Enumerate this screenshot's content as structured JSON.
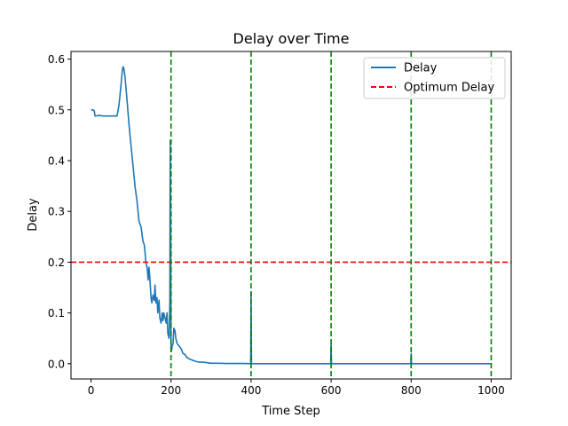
{
  "chart_data": {
    "type": "line",
    "title": "Delay over Time",
    "xlabel": "Time Step",
    "ylabel": "Delay",
    "xlim": [
      -50,
      1050
    ],
    "ylim": [
      -0.03,
      0.615
    ],
    "xticks": [
      0,
      200,
      400,
      600,
      800,
      1000
    ],
    "xtick_labels": [
      "0",
      "200",
      "400",
      "600",
      "800",
      "1000"
    ],
    "yticks": [
      0.0,
      0.1,
      0.2,
      0.3,
      0.4,
      0.5,
      0.6
    ],
    "ytick_labels": [
      "0.0",
      "0.1",
      "0.2",
      "0.3",
      "0.4",
      "0.5",
      "0.6"
    ],
    "grid": false,
    "legend_position": "top-right",
    "series": [
      {
        "name": "Delay",
        "color": "#1f77b4",
        "style": "solid",
        "x": [
          0,
          5,
          8,
          10,
          20,
          30,
          40,
          50,
          60,
          65,
          70,
          75,
          78,
          80,
          82,
          85,
          90,
          95,
          100,
          105,
          110,
          115,
          120,
          125,
          130,
          133,
          135,
          137,
          140,
          143,
          145,
          147,
          150,
          152,
          155,
          158,
          160,
          162,
          165,
          167,
          170,
          172,
          175,
          178,
          180,
          182,
          185,
          188,
          190,
          192,
          195,
          197,
          198,
          199,
          200,
          201,
          202,
          203,
          205,
          207,
          210,
          212,
          215,
          220,
          225,
          230,
          235,
          240,
          245,
          250,
          260,
          270,
          280,
          290,
          300,
          320,
          340,
          360,
          380,
          399,
          400,
          401,
          420,
          450,
          500,
          550,
          599,
          600,
          601,
          650,
          700,
          750,
          799,
          800,
          801,
          850,
          900,
          950,
          1000
        ],
        "values": [
          0.5,
          0.5,
          0.498,
          0.488,
          0.489,
          0.488,
          0.488,
          0.488,
          0.488,
          0.488,
          0.51,
          0.55,
          0.575,
          0.585,
          0.582,
          0.565,
          0.52,
          0.47,
          0.43,
          0.39,
          0.35,
          0.32,
          0.28,
          0.27,
          0.24,
          0.235,
          0.22,
          0.2,
          0.19,
          0.165,
          0.19,
          0.17,
          0.13,
          0.12,
          0.135,
          0.125,
          0.155,
          0.12,
          0.13,
          0.1,
          0.125,
          0.09,
          0.08,
          0.1,
          0.085,
          0.1,
          0.09,
          0.08,
          0.1,
          0.06,
          0.05,
          0.12,
          0.44,
          0.3,
          0.03,
          0.025,
          0.03,
          0.035,
          0.04,
          0.07,
          0.065,
          0.05,
          0.04,
          0.035,
          0.03,
          0.02,
          0.018,
          0.012,
          0.01,
          0.008,
          0.005,
          0.003,
          0.003,
          0.002,
          0.001,
          0.001,
          0.0005,
          0.0005,
          0.0005,
          0.0,
          0.14,
          0.0,
          0.0,
          0.0,
          0.0,
          0.0,
          0.0,
          0.04,
          0.0,
          0.0,
          0.0,
          0.0,
          0.0,
          0.02,
          0.0,
          0.0,
          0.0,
          0.0,
          0.0
        ]
      },
      {
        "name": "Optimum Delay",
        "color": "#ff0000",
        "style": "dashed",
        "y": 0.2
      }
    ],
    "vlines": {
      "x": [
        200,
        400,
        600,
        800,
        1000
      ],
      "color": "#008000",
      "style": "dashed"
    }
  }
}
